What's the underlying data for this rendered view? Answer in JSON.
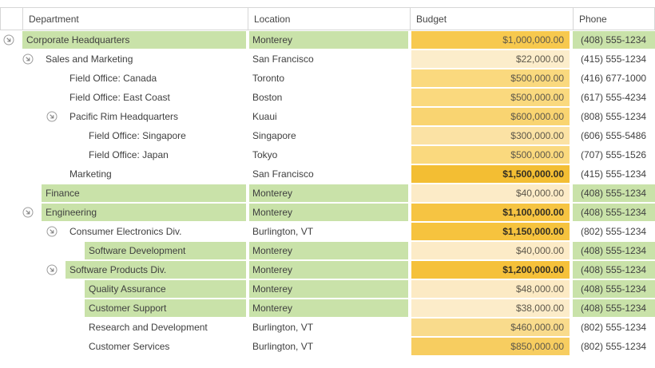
{
  "grid": {
    "columns": [
      {
        "label": "Department"
      },
      {
        "label": "Location"
      },
      {
        "label": "Budget"
      },
      {
        "label": "Phone"
      }
    ],
    "rows": [
      {
        "department": "Corporate Headquarters",
        "level": 0,
        "expander": true,
        "location": "Monterey",
        "budget": "$1,000,000.00",
        "phone": "(408) 555-1234",
        "highlight": true,
        "budget_bg": "#F7C94E",
        "budget_bold": false
      },
      {
        "department": "Sales and Marketing",
        "level": 1,
        "expander": true,
        "location": "San Francisco",
        "budget": "$22,000.00",
        "phone": "(415) 555-1234",
        "highlight": false,
        "budget_bg": "#FCEDCB",
        "budget_bold": false
      },
      {
        "department": "Field Office: Canada",
        "level": 2,
        "expander": false,
        "location": "Toronto",
        "budget": "$500,000.00",
        "phone": "(416) 677-1000",
        "highlight": false,
        "budget_bg": "#FAD97E",
        "budget_bold": false
      },
      {
        "department": "Field Office: East Coast",
        "level": 2,
        "expander": false,
        "location": "Boston",
        "budget": "$500,000.00",
        "phone": "(617) 555-4234",
        "highlight": false,
        "budget_bg": "#FAD97E",
        "budget_bold": false
      },
      {
        "department": "Pacific Rim Headquarters",
        "level": 2,
        "expander": true,
        "location": "Kuaui",
        "budget": "$600,000.00",
        "phone": "(808) 555-1234",
        "highlight": false,
        "budget_bg": "#F9D471",
        "budget_bold": false
      },
      {
        "department": "Field Office: Singapore",
        "level": 3,
        "expander": false,
        "location": "Singapore",
        "budget": "$300,000.00",
        "phone": "(606) 555-5486",
        "highlight": false,
        "budget_bg": "#FBE2A4",
        "budget_bold": false
      },
      {
        "department": "Field Office: Japan",
        "level": 3,
        "expander": false,
        "location": "Tokyo",
        "budget": "$500,000.00",
        "phone": "(707) 555-1526",
        "highlight": false,
        "budget_bg": "#FAD97E",
        "budget_bold": false
      },
      {
        "department": "Marketing",
        "level": 2,
        "expander": false,
        "location": "San Francisco",
        "budget": "$1,500,000.00",
        "phone": "(415) 555-1234",
        "highlight": false,
        "budget_bg": "#F3BE33",
        "budget_bold": true
      },
      {
        "department": "Finance",
        "level": 1,
        "expander": false,
        "location": "Monterey",
        "budget": "$40,000.00",
        "phone": "(408) 555-1234",
        "highlight": true,
        "budget_bg": "#FCEBC7",
        "budget_bold": false
      },
      {
        "department": "Engineering",
        "level": 1,
        "expander": true,
        "location": "Monterey",
        "budget": "$1,100,000.00",
        "phone": "(408) 555-1234",
        "highlight": true,
        "budget_bg": "#F6C442",
        "budget_bold": true
      },
      {
        "department": "Consumer Electronics Div.",
        "level": 2,
        "expander": true,
        "location": "Burlington, VT",
        "budget": "$1,150,000.00",
        "phone": "(802) 555-1234",
        "highlight": false,
        "budget_bg": "#F6C33E",
        "budget_bold": true
      },
      {
        "department": "Software Development",
        "level": 3,
        "expander": false,
        "location": "Monterey",
        "budget": "$40,000.00",
        "phone": "(408) 555-1234",
        "highlight": true,
        "budget_bg": "#FCEBC7",
        "budget_bold": false
      },
      {
        "department": "Software Products Div.",
        "level": 2,
        "expander": true,
        "location": "Monterey",
        "budget": "$1,200,000.00",
        "phone": "(408) 555-1234",
        "highlight": true,
        "budget_bg": "#F5C13A",
        "budget_bold": true
      },
      {
        "department": "Quality Assurance",
        "level": 3,
        "expander": false,
        "location": "Monterey",
        "budget": "$48,000.00",
        "phone": "(408) 555-1234",
        "highlight": true,
        "budget_bg": "#FCEAC4",
        "budget_bold": false
      },
      {
        "department": "Customer Support",
        "level": 3,
        "expander": false,
        "location": "Monterey",
        "budget": "$38,000.00",
        "phone": "(408) 555-1234",
        "highlight": true,
        "budget_bg": "#FCECC9",
        "budget_bold": false
      },
      {
        "department": "Research and Development",
        "level": 3,
        "expander": false,
        "location": "Burlington, VT",
        "budget": "$460,000.00",
        "phone": "(802) 555-1234",
        "highlight": false,
        "budget_bg": "#F9DB8C",
        "budget_bold": false
      },
      {
        "department": "Customer Services",
        "level": 3,
        "expander": false,
        "location": "Burlington, VT",
        "budget": "$850,000.00",
        "phone": "(802) 555-1234",
        "highlight": false,
        "budget_bg": "#F7CD60",
        "budget_bold": false
      }
    ]
  },
  "colors": {
    "row_highlight_green": "#C9E2A9",
    "header_border": "#D6D6D6",
    "header_text": "#454545",
    "body_text": "#3F3F3F",
    "budget_text": "#5E584B",
    "budget_text_bold": "#332E22",
    "expander_stroke": "#9C9C9C"
  },
  "icons": {
    "expander": "circled-diagonal-down-arrow"
  }
}
